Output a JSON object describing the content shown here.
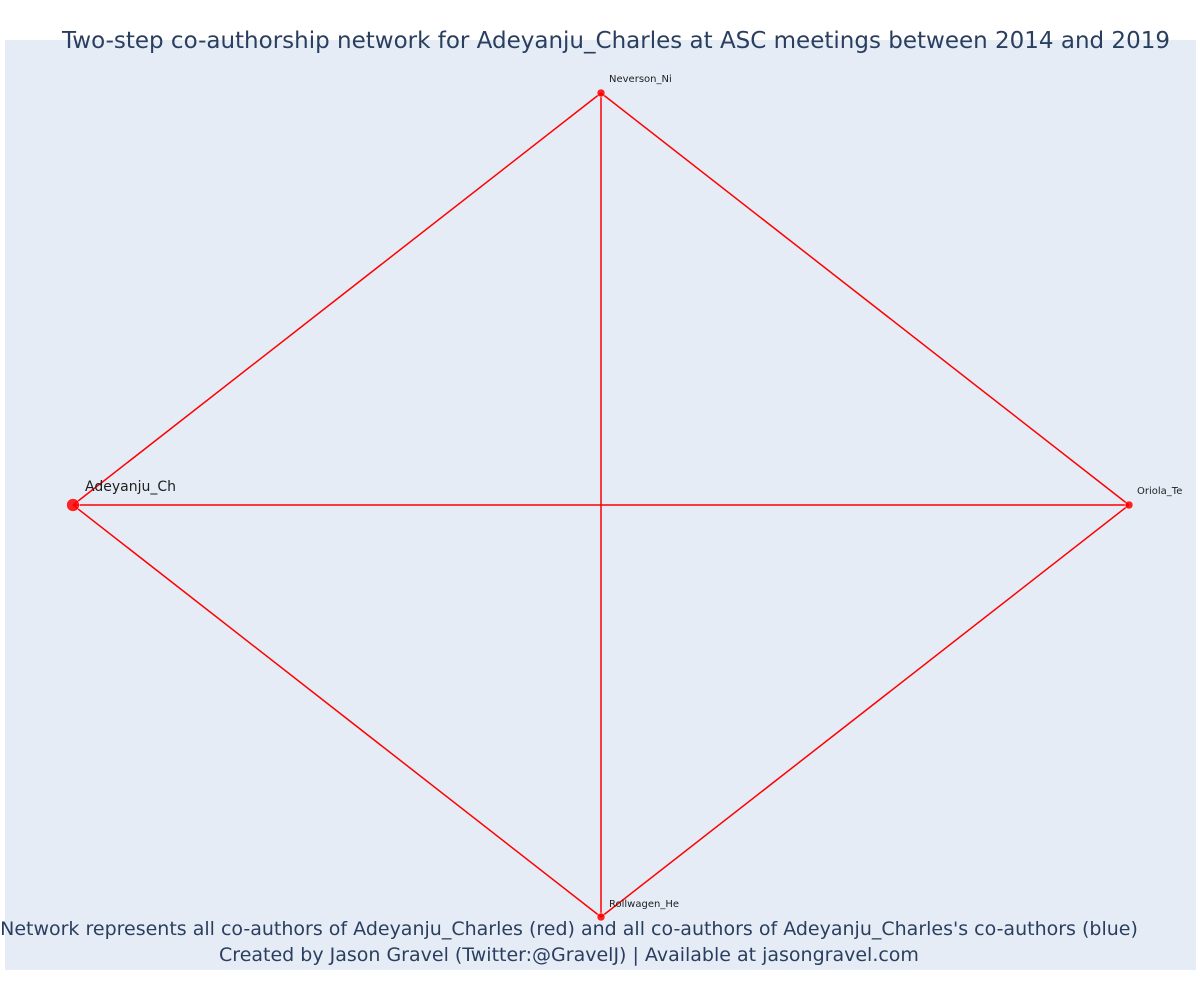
{
  "title": "Two-step co-authorship network for Adeyanju_Charles at ASC meetings between 2014 and 2019",
  "caption": {
    "line1": "Network represents all co-authors of Adeyanju_Charles (red) and all co-authors of Adeyanju_Charles's co-authors (blue)",
    "line2": "Created by Jason Gravel (Twitter:@GravelJ) | Available at jasongravel.com"
  },
  "colors": {
    "plot_background": "#e5ecf6",
    "edge": "#ff0000",
    "node": "#ff0000",
    "text": "#2a3f5f"
  },
  "network": {
    "nodes": [
      {
        "id": "Adeyanju_Charles",
        "label": "Adeyanju_Ch",
        "is_focal": true
      },
      {
        "id": "Neverson_Ni",
        "label": "Neverson_Ni",
        "is_focal": false
      },
      {
        "id": "Oriola_Te",
        "label": "Oriola_Te",
        "is_focal": false
      },
      {
        "id": "Rollwagen_He",
        "label": "Rollwagen_He",
        "is_focal": false
      }
    ],
    "edges": [
      [
        "Adeyanju_Charles",
        "Neverson_Ni"
      ],
      [
        "Adeyanju_Charles",
        "Oriola_Te"
      ],
      [
        "Adeyanju_Charles",
        "Rollwagen_He"
      ],
      [
        "Neverson_Ni",
        "Oriola_Te"
      ],
      [
        "Neverson_Ni",
        "Rollwagen_He"
      ],
      [
        "Oriola_Te",
        "Rollwagen_He"
      ]
    ]
  }
}
